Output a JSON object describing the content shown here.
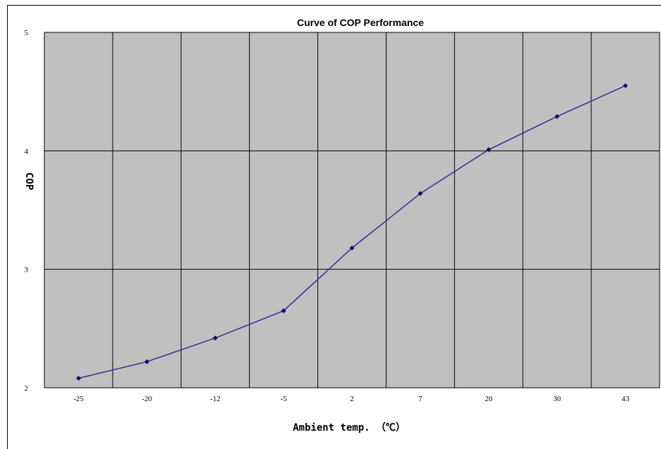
{
  "chart_data": {
    "type": "line",
    "title": "Curve of COP Performance",
    "xlabel": "Ambient temp. （℃）",
    "ylabel": "COP",
    "categories": [
      "-25",
      "-20",
      "-12",
      "-5",
      "2",
      "7",
      "20",
      "30",
      "43"
    ],
    "series": [
      {
        "values": [
          2.08,
          2.22,
          2.42,
          2.65,
          3.18,
          3.64,
          4.01,
          4.29,
          4.55
        ]
      }
    ],
    "ylim": [
      2,
      5
    ],
    "yticks": [
      "2",
      "3",
      "4",
      "5"
    ],
    "grid": true,
    "legend": "none",
    "colors": {
      "plot_background": "#c0c0c0",
      "gridline": "#000000",
      "line": "#2e2e8e",
      "marker": "#0a0a6e"
    }
  }
}
